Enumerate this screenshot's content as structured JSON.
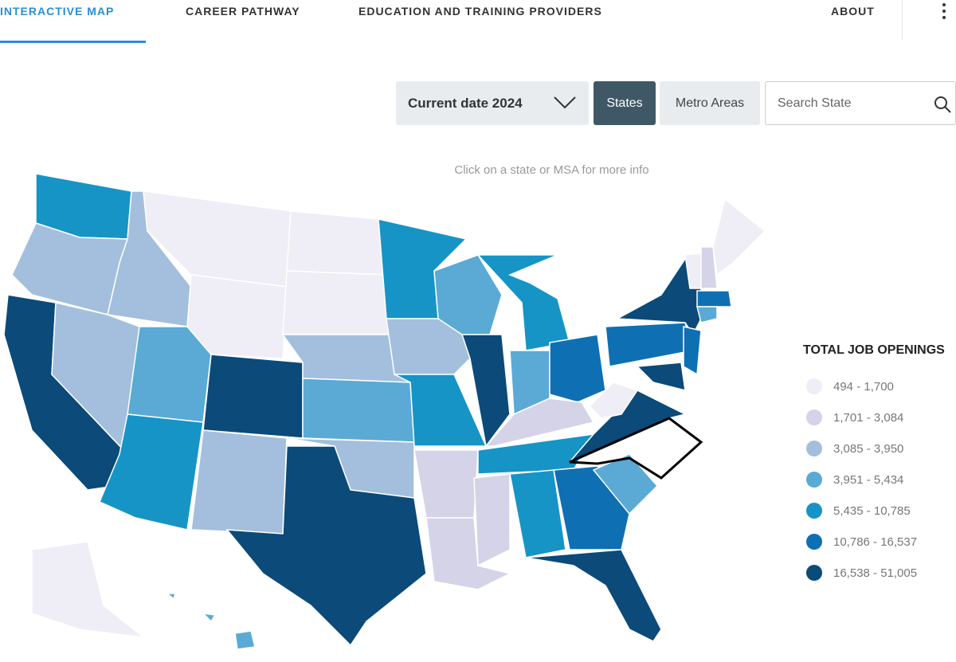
{
  "nav": {
    "items": [
      "INTERACTIVE MAP",
      "CAREER PATHWAY",
      "EDUCATION AND TRAINING PROVIDERS",
      "ABOUT"
    ]
  },
  "controls": {
    "date_select": "Current date 2024",
    "tabs": [
      "States",
      "Metro Areas"
    ],
    "search_placeholder": "Search State"
  },
  "map": {
    "hint": "Click on a state or MSA for more info"
  },
  "legend": {
    "title": "TOTAL JOB OPENINGS",
    "items": [
      {
        "label": "494 - 1,700",
        "color": "#efedf5"
      },
      {
        "label": "1,701 - 3,084",
        "color": "#d4d3e8"
      },
      {
        "label": "3,085 - 3,950",
        "color": "#a3bfdd"
      },
      {
        "label": "3,951 - 5,434",
        "color": "#5aaad5"
      },
      {
        "label": "5,435 - 10,785",
        "color": "#1694c6"
      },
      {
        "label": "10,786 - 16,537",
        "color": "#0f6fb3"
      },
      {
        "label": "16,538 - 51,005",
        "color": "#0b4a79"
      }
    ]
  }
}
